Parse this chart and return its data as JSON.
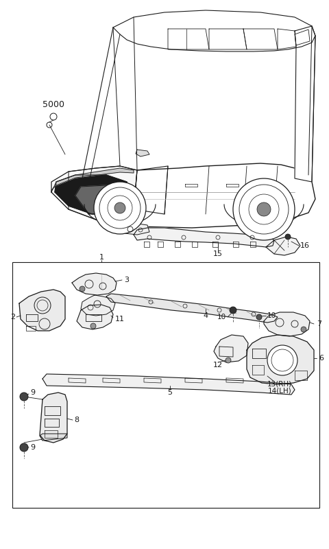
{
  "bg": "#ffffff",
  "lc": "#1a1a1a",
  "fig_w": 4.8,
  "fig_h": 8.0,
  "dpi": 100
}
